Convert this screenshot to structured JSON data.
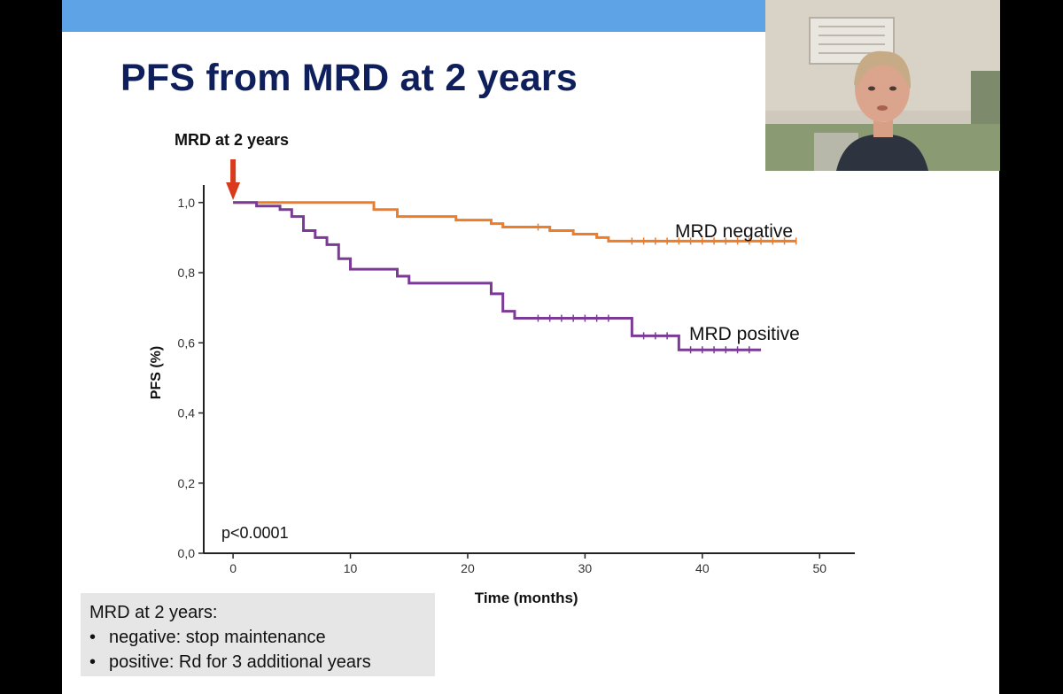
{
  "slide": {
    "title": "PFS from MRD at 2 years",
    "marker_label": "MRD at 2 years",
    "note": {
      "heading": "MRD at 2 years:",
      "bullets": [
        "negative: stop maintenance",
        "positive:  Rd for 3 additional years"
      ]
    }
  },
  "colors": {
    "top_bar": "#5da3e6",
    "title": "#0f1f5c",
    "mrd_negative": "#ee7d2a",
    "mrd_positive": "#7b3a96",
    "arrow": "#d93a1c"
  },
  "chart_data": {
    "type": "line",
    "xlabel": "Time (months)",
    "ylabel": "PFS (%)",
    "xlim": [
      -2.5,
      53
    ],
    "ylim": [
      0,
      1.05
    ],
    "x_ticks": [
      0,
      10,
      20,
      30,
      40,
      50
    ],
    "y_ticks": [
      "0,0",
      "0,2",
      "0,4",
      "0,6",
      "0,8",
      "1,0"
    ],
    "y_tick_values": [
      0,
      0.2,
      0.4,
      0.6,
      0.8,
      1.0
    ],
    "annotation": "p<0.0001",
    "marker_x": 0,
    "series": [
      {
        "name": "MRD negative",
        "color": "#ee7d2a",
        "steps": [
          [
            0,
            1.0
          ],
          [
            12,
            0.98
          ],
          [
            14,
            0.96
          ],
          [
            19,
            0.95
          ],
          [
            22,
            0.94
          ],
          [
            23,
            0.93
          ],
          [
            27,
            0.92
          ],
          [
            29,
            0.91
          ],
          [
            31,
            0.9
          ],
          [
            32,
            0.89
          ],
          [
            48,
            0.89
          ]
        ],
        "censored": [
          26,
          34,
          35,
          36,
          37,
          38,
          39,
          40,
          41,
          42,
          43,
          44,
          45,
          46,
          47,
          48
        ]
      },
      {
        "name": "MRD positive",
        "color": "#7b3a96",
        "steps": [
          [
            0,
            1.0
          ],
          [
            2,
            0.99
          ],
          [
            4,
            0.98
          ],
          [
            5,
            0.96
          ],
          [
            6,
            0.92
          ],
          [
            7,
            0.9
          ],
          [
            8,
            0.88
          ],
          [
            9,
            0.84
          ],
          [
            10,
            0.81
          ],
          [
            14,
            0.79
          ],
          [
            15,
            0.77
          ],
          [
            22,
            0.74
          ],
          [
            23,
            0.69
          ],
          [
            24,
            0.67
          ],
          [
            34,
            0.62
          ],
          [
            38,
            0.58
          ],
          [
            45,
            0.58
          ]
        ],
        "censored": [
          26,
          27,
          28,
          29,
          30,
          31,
          32,
          35,
          36,
          37,
          39,
          40,
          41,
          42,
          43,
          44
        ]
      }
    ]
  }
}
